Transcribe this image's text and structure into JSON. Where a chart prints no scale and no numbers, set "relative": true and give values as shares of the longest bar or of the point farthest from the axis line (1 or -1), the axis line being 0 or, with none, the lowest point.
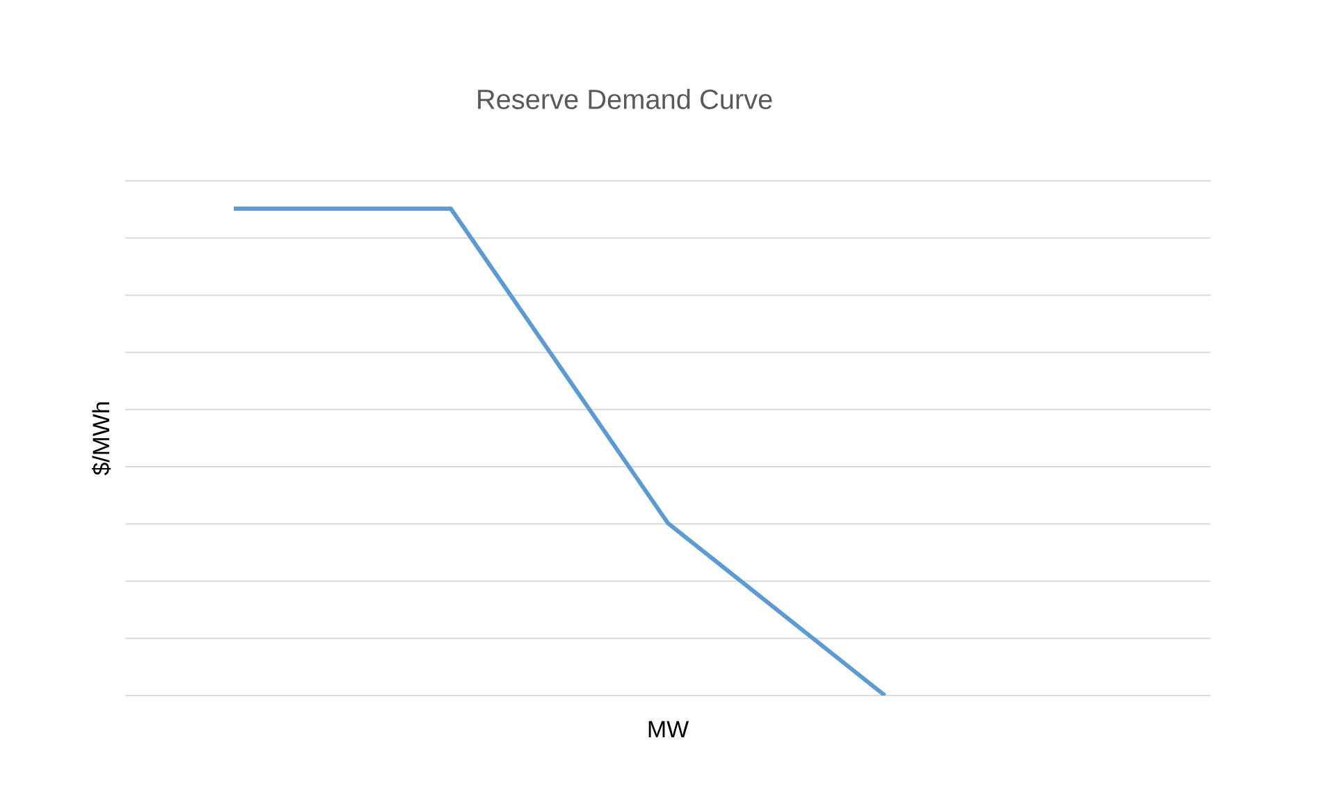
{
  "chart_data": {
    "type": "line",
    "title": "Reserve Demand Curve",
    "xlabel": "MW",
    "ylabel": "$/MWh",
    "categories": [
      null,
      null,
      null,
      null,
      null
    ],
    "series": [
      {
        "color": "#5b9bd5",
        "values": [
          1,
          1,
          0.354,
          0,
          null
        ]
      }
    ],
    "relative": true,
    "grid": "y"
  }
}
